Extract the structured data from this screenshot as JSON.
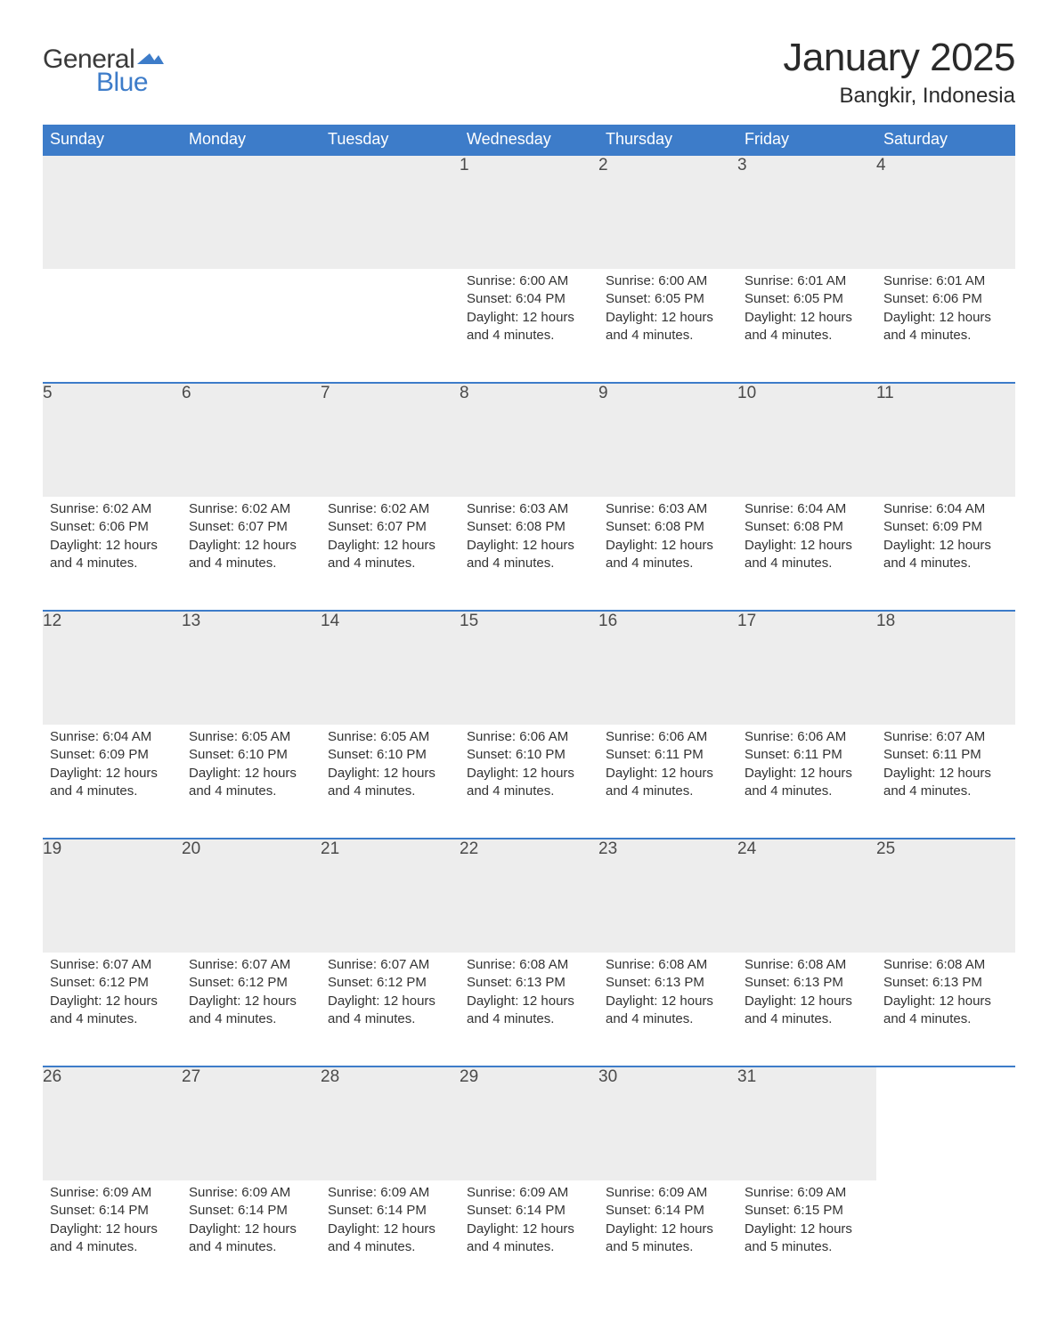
{
  "brand": {
    "line1": "General",
    "line2": "Blue",
    "flag_color": "#3d7cc9",
    "text_color_dark": "#3a3a3a"
  },
  "title": "January 2025",
  "location": "Bangkir, Indonesia",
  "header_bg": "#3d7cc9",
  "header_fg": "#ffffff",
  "daynum_bg": "#ededed",
  "border_color": "#3d7cc9",
  "days_of_week": [
    "Sunday",
    "Monday",
    "Tuesday",
    "Wednesday",
    "Thursday",
    "Friday",
    "Saturday"
  ],
  "labels": {
    "sunrise": "Sunrise",
    "sunset": "Sunset",
    "daylight": "Daylight"
  },
  "weeks": [
    [
      null,
      null,
      null,
      {
        "n": "1",
        "sunrise": "6:00 AM",
        "sunset": "6:04 PM",
        "daylight": "12 hours and 4 minutes."
      },
      {
        "n": "2",
        "sunrise": "6:00 AM",
        "sunset": "6:05 PM",
        "daylight": "12 hours and 4 minutes."
      },
      {
        "n": "3",
        "sunrise": "6:01 AM",
        "sunset": "6:05 PM",
        "daylight": "12 hours and 4 minutes."
      },
      {
        "n": "4",
        "sunrise": "6:01 AM",
        "sunset": "6:06 PM",
        "daylight": "12 hours and 4 minutes."
      }
    ],
    [
      {
        "n": "5",
        "sunrise": "6:02 AM",
        "sunset": "6:06 PM",
        "daylight": "12 hours and 4 minutes."
      },
      {
        "n": "6",
        "sunrise": "6:02 AM",
        "sunset": "6:07 PM",
        "daylight": "12 hours and 4 minutes."
      },
      {
        "n": "7",
        "sunrise": "6:02 AM",
        "sunset": "6:07 PM",
        "daylight": "12 hours and 4 minutes."
      },
      {
        "n": "8",
        "sunrise": "6:03 AM",
        "sunset": "6:08 PM",
        "daylight": "12 hours and 4 minutes."
      },
      {
        "n": "9",
        "sunrise": "6:03 AM",
        "sunset": "6:08 PM",
        "daylight": "12 hours and 4 minutes."
      },
      {
        "n": "10",
        "sunrise": "6:04 AM",
        "sunset": "6:08 PM",
        "daylight": "12 hours and 4 minutes."
      },
      {
        "n": "11",
        "sunrise": "6:04 AM",
        "sunset": "6:09 PM",
        "daylight": "12 hours and 4 minutes."
      }
    ],
    [
      {
        "n": "12",
        "sunrise": "6:04 AM",
        "sunset": "6:09 PM",
        "daylight": "12 hours and 4 minutes."
      },
      {
        "n": "13",
        "sunrise": "6:05 AM",
        "sunset": "6:10 PM",
        "daylight": "12 hours and 4 minutes."
      },
      {
        "n": "14",
        "sunrise": "6:05 AM",
        "sunset": "6:10 PM",
        "daylight": "12 hours and 4 minutes."
      },
      {
        "n": "15",
        "sunrise": "6:06 AM",
        "sunset": "6:10 PM",
        "daylight": "12 hours and 4 minutes."
      },
      {
        "n": "16",
        "sunrise": "6:06 AM",
        "sunset": "6:11 PM",
        "daylight": "12 hours and 4 minutes."
      },
      {
        "n": "17",
        "sunrise": "6:06 AM",
        "sunset": "6:11 PM",
        "daylight": "12 hours and 4 minutes."
      },
      {
        "n": "18",
        "sunrise": "6:07 AM",
        "sunset": "6:11 PM",
        "daylight": "12 hours and 4 minutes."
      }
    ],
    [
      {
        "n": "19",
        "sunrise": "6:07 AM",
        "sunset": "6:12 PM",
        "daylight": "12 hours and 4 minutes."
      },
      {
        "n": "20",
        "sunrise": "6:07 AM",
        "sunset": "6:12 PM",
        "daylight": "12 hours and 4 minutes."
      },
      {
        "n": "21",
        "sunrise": "6:07 AM",
        "sunset": "6:12 PM",
        "daylight": "12 hours and 4 minutes."
      },
      {
        "n": "22",
        "sunrise": "6:08 AM",
        "sunset": "6:13 PM",
        "daylight": "12 hours and 4 minutes."
      },
      {
        "n": "23",
        "sunrise": "6:08 AM",
        "sunset": "6:13 PM",
        "daylight": "12 hours and 4 minutes."
      },
      {
        "n": "24",
        "sunrise": "6:08 AM",
        "sunset": "6:13 PM",
        "daylight": "12 hours and 4 minutes."
      },
      {
        "n": "25",
        "sunrise": "6:08 AM",
        "sunset": "6:13 PM",
        "daylight": "12 hours and 4 minutes."
      }
    ],
    [
      {
        "n": "26",
        "sunrise": "6:09 AM",
        "sunset": "6:14 PM",
        "daylight": "12 hours and 4 minutes."
      },
      {
        "n": "27",
        "sunrise": "6:09 AM",
        "sunset": "6:14 PM",
        "daylight": "12 hours and 4 minutes."
      },
      {
        "n": "28",
        "sunrise": "6:09 AM",
        "sunset": "6:14 PM",
        "daylight": "12 hours and 4 minutes."
      },
      {
        "n": "29",
        "sunrise": "6:09 AM",
        "sunset": "6:14 PM",
        "daylight": "12 hours and 4 minutes."
      },
      {
        "n": "30",
        "sunrise": "6:09 AM",
        "sunset": "6:14 PM",
        "daylight": "12 hours and 5 minutes."
      },
      {
        "n": "31",
        "sunrise": "6:09 AM",
        "sunset": "6:15 PM",
        "daylight": "12 hours and 5 minutes."
      },
      null
    ]
  ]
}
